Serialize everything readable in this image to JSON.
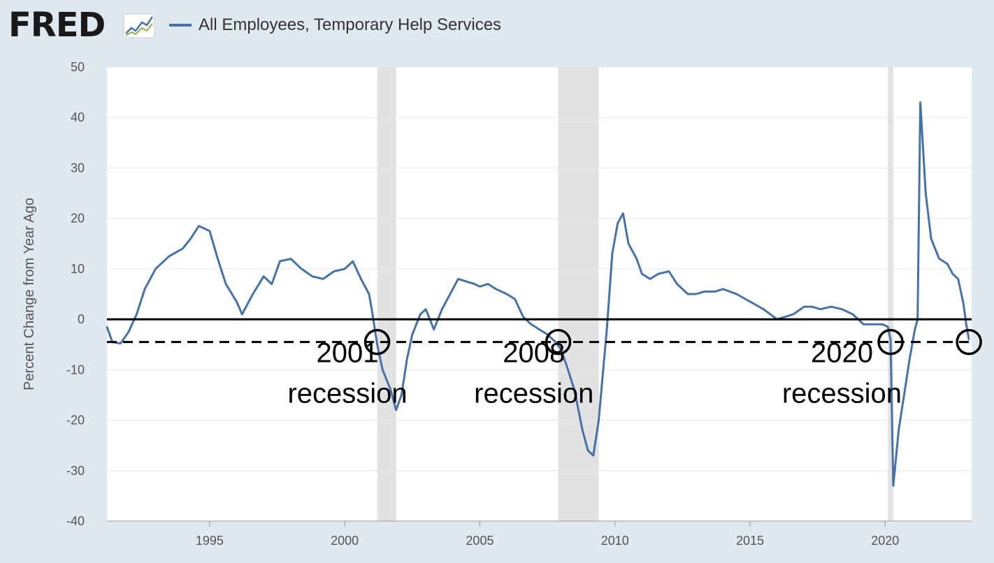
{
  "header": {
    "logo_text": "FRED",
    "logo_icon": "fred-chart-icon",
    "series_label": "All Employees, Temporary Help Services"
  },
  "colors": {
    "background": "#e1e9f0",
    "plot_bg": "#ffffff",
    "line": "#4572a7",
    "recession_band": "#e2e2e2",
    "gridline": "#e6e6e6",
    "annotation": "#000000"
  },
  "chart_data": {
    "type": "line",
    "title": "All Employees, Temporary Help Services",
    "xlabel": "",
    "ylabel": "Percent Change from Year Ago",
    "xlim": [
      1991.2,
      2023.2
    ],
    "ylim": [
      -40,
      50
    ],
    "yticks": [
      -40,
      -30,
      -20,
      -10,
      0,
      10,
      20,
      30,
      40,
      50
    ],
    "xticks": [
      1995,
      2000,
      2005,
      2010,
      2015,
      2020
    ],
    "grid": true,
    "legend_placement": "top-left",
    "recessions": [
      [
        2001.2,
        2001.9
      ],
      [
        2007.9,
        2009.4
      ],
      [
        2020.1,
        2020.3
      ]
    ],
    "reference_lines": [
      {
        "y": 0,
        "style": "solid"
      },
      {
        "y": -4.5,
        "style": "dashed"
      }
    ],
    "circles": [
      {
        "x": 2001.2,
        "y": -4.5
      },
      {
        "x": 2007.9,
        "y": -4.5
      },
      {
        "x": 2020.2,
        "y": -4.5
      },
      {
        "x": 2023.1,
        "y": -4.5
      }
    ],
    "annotations": [
      {
        "lines": [
          "2001",
          "recession"
        ],
        "x": 2000.1,
        "y": -8.5
      },
      {
        "lines": [
          "2008",
          "recession"
        ],
        "x": 2007.0,
        "y": -8.5
      },
      {
        "lines": [
          "2020",
          "recession"
        ],
        "x": 2018.4,
        "y": -8.5
      }
    ],
    "series": [
      {
        "name": "All Employees, Temporary Help Services",
        "x": [
          1991.2,
          1991.4,
          1991.7,
          1992.0,
          1992.3,
          1992.6,
          1993.0,
          1993.5,
          1994.0,
          1994.3,
          1994.6,
          1995.0,
          1995.3,
          1995.6,
          1996.0,
          1996.2,
          1996.6,
          1997.0,
          1997.3,
          1997.6,
          1998.0,
          1998.4,
          1998.8,
          1999.2,
          1999.6,
          2000.0,
          2000.3,
          2000.6,
          2000.9,
          2001.0,
          2001.2,
          2001.4,
          2001.7,
          2001.9,
          2002.1,
          2002.3,
          2002.5,
          2002.8,
          2003.0,
          2003.3,
          2003.6,
          2004.0,
          2004.2,
          2004.5,
          2004.8,
          2005.0,
          2005.3,
          2005.6,
          2006.0,
          2006.3,
          2006.6,
          2006.9,
          2007.2,
          2007.5,
          2007.8,
          2008.0,
          2008.2,
          2008.5,
          2008.8,
          2009.0,
          2009.2,
          2009.4,
          2009.7,
          2009.9,
          2010.1,
          2010.3,
          2010.5,
          2010.8,
          2011.0,
          2011.3,
          2011.6,
          2012.0,
          2012.3,
          2012.7,
          2013.0,
          2013.3,
          2013.7,
          2014.0,
          2014.5,
          2015.0,
          2015.5,
          2016.0,
          2016.3,
          2016.6,
          2017.0,
          2017.3,
          2017.6,
          2018.0,
          2018.4,
          2018.8,
          2019.2,
          2019.6,
          2019.9,
          2020.1,
          2020.2,
          2020.3,
          2020.5,
          2020.7,
          2020.9,
          2021.1,
          2021.2,
          2021.3,
          2021.5,
          2021.7,
          2022.0,
          2022.3,
          2022.5,
          2022.7,
          2022.9,
          2023.0,
          2023.1
        ],
        "values": [
          -1.5,
          -4.5,
          -4.8,
          -2.5,
          1.0,
          6.0,
          10.0,
          12.5,
          14.0,
          16.0,
          18.5,
          17.5,
          12.0,
          7.0,
          3.5,
          1.0,
          5.0,
          8.5,
          7.0,
          11.5,
          12.0,
          10.0,
          8.5,
          8.0,
          9.5,
          10.0,
          11.5,
          8.0,
          5.0,
          2.0,
          -5.0,
          -10.0,
          -14.0,
          -18.0,
          -15.0,
          -8.0,
          -3.0,
          1.0,
          2.0,
          -2.0,
          2.0,
          6.0,
          8.0,
          7.5,
          7.0,
          6.5,
          7.0,
          6.0,
          5.0,
          4.0,
          0.5,
          -1.0,
          -2.0,
          -3.0,
          -4.5,
          -6.0,
          -9.0,
          -14.0,
          -22.0,
          -26.0,
          -27.0,
          -20.0,
          -2.0,
          13.0,
          19.0,
          21.0,
          15.0,
          12.0,
          9.0,
          8.0,
          9.0,
          9.5,
          7.0,
          5.0,
          5.0,
          5.5,
          5.5,
          6.0,
          5.0,
          3.5,
          2.0,
          0.0,
          0.5,
          1.0,
          2.5,
          2.5,
          2.0,
          2.5,
          2.0,
          1.0,
          -1.0,
          -1.0,
          -1.0,
          -1.5,
          -4.0,
          -33.0,
          -22.0,
          -15.0,
          -8.0,
          -2.0,
          0.0,
          43.0,
          25.0,
          16.0,
          12.0,
          11.0,
          9.0,
          8.0,
          3.0,
          -1.0,
          -4.0
        ]
      }
    ]
  }
}
